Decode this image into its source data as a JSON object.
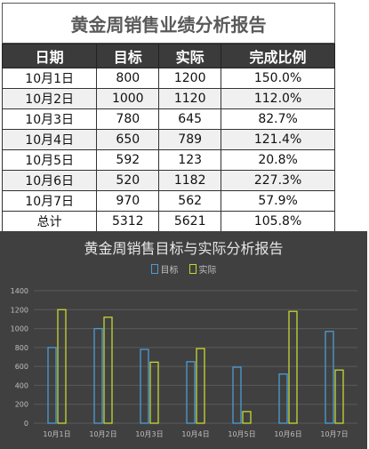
{
  "table": {
    "title": "黄金周销售业绩分析报告",
    "headers": [
      "日期",
      "目标",
      "实际",
      "完成比例"
    ],
    "rows": [
      [
        "10月1日",
        "800",
        "1200",
        "150.0%"
      ],
      [
        "10月2日",
        "1000",
        "1120",
        "112.0%"
      ],
      [
        "10月3日",
        "780",
        "645",
        "82.7%"
      ],
      [
        "10月4日",
        "650",
        "789",
        "121.4%"
      ],
      [
        "10月5日",
        "592",
        "123",
        "20.8%"
      ],
      [
        "10月6日",
        "520",
        "1182",
        "227.3%"
      ],
      [
        "10月7日",
        "970",
        "562",
        "57.9%"
      ],
      [
        "总计",
        "5312",
        "5621",
        "105.8%"
      ]
    ]
  },
  "chart_data": {
    "type": "bar",
    "title": "黄金周销售目标与实际分析报告",
    "categories": [
      "10月1日",
      "10月2日",
      "10月3日",
      "10月4日",
      "10月5日",
      "10月6日",
      "10月7日"
    ],
    "series": [
      {
        "name": "目标",
        "values": [
          800,
          1000,
          780,
          650,
          592,
          520,
          970
        ],
        "color": "#4a9cd6"
      },
      {
        "name": "实际",
        "values": [
          1200,
          1120,
          645,
          789,
          123,
          1182,
          562
        ],
        "color": "#c8d632"
      }
    ],
    "ylim": [
      0,
      1400
    ],
    "yticks": [
      0,
      200,
      400,
      600,
      800,
      1000,
      1200,
      1400
    ],
    "grid": true,
    "legend_position": "top"
  }
}
